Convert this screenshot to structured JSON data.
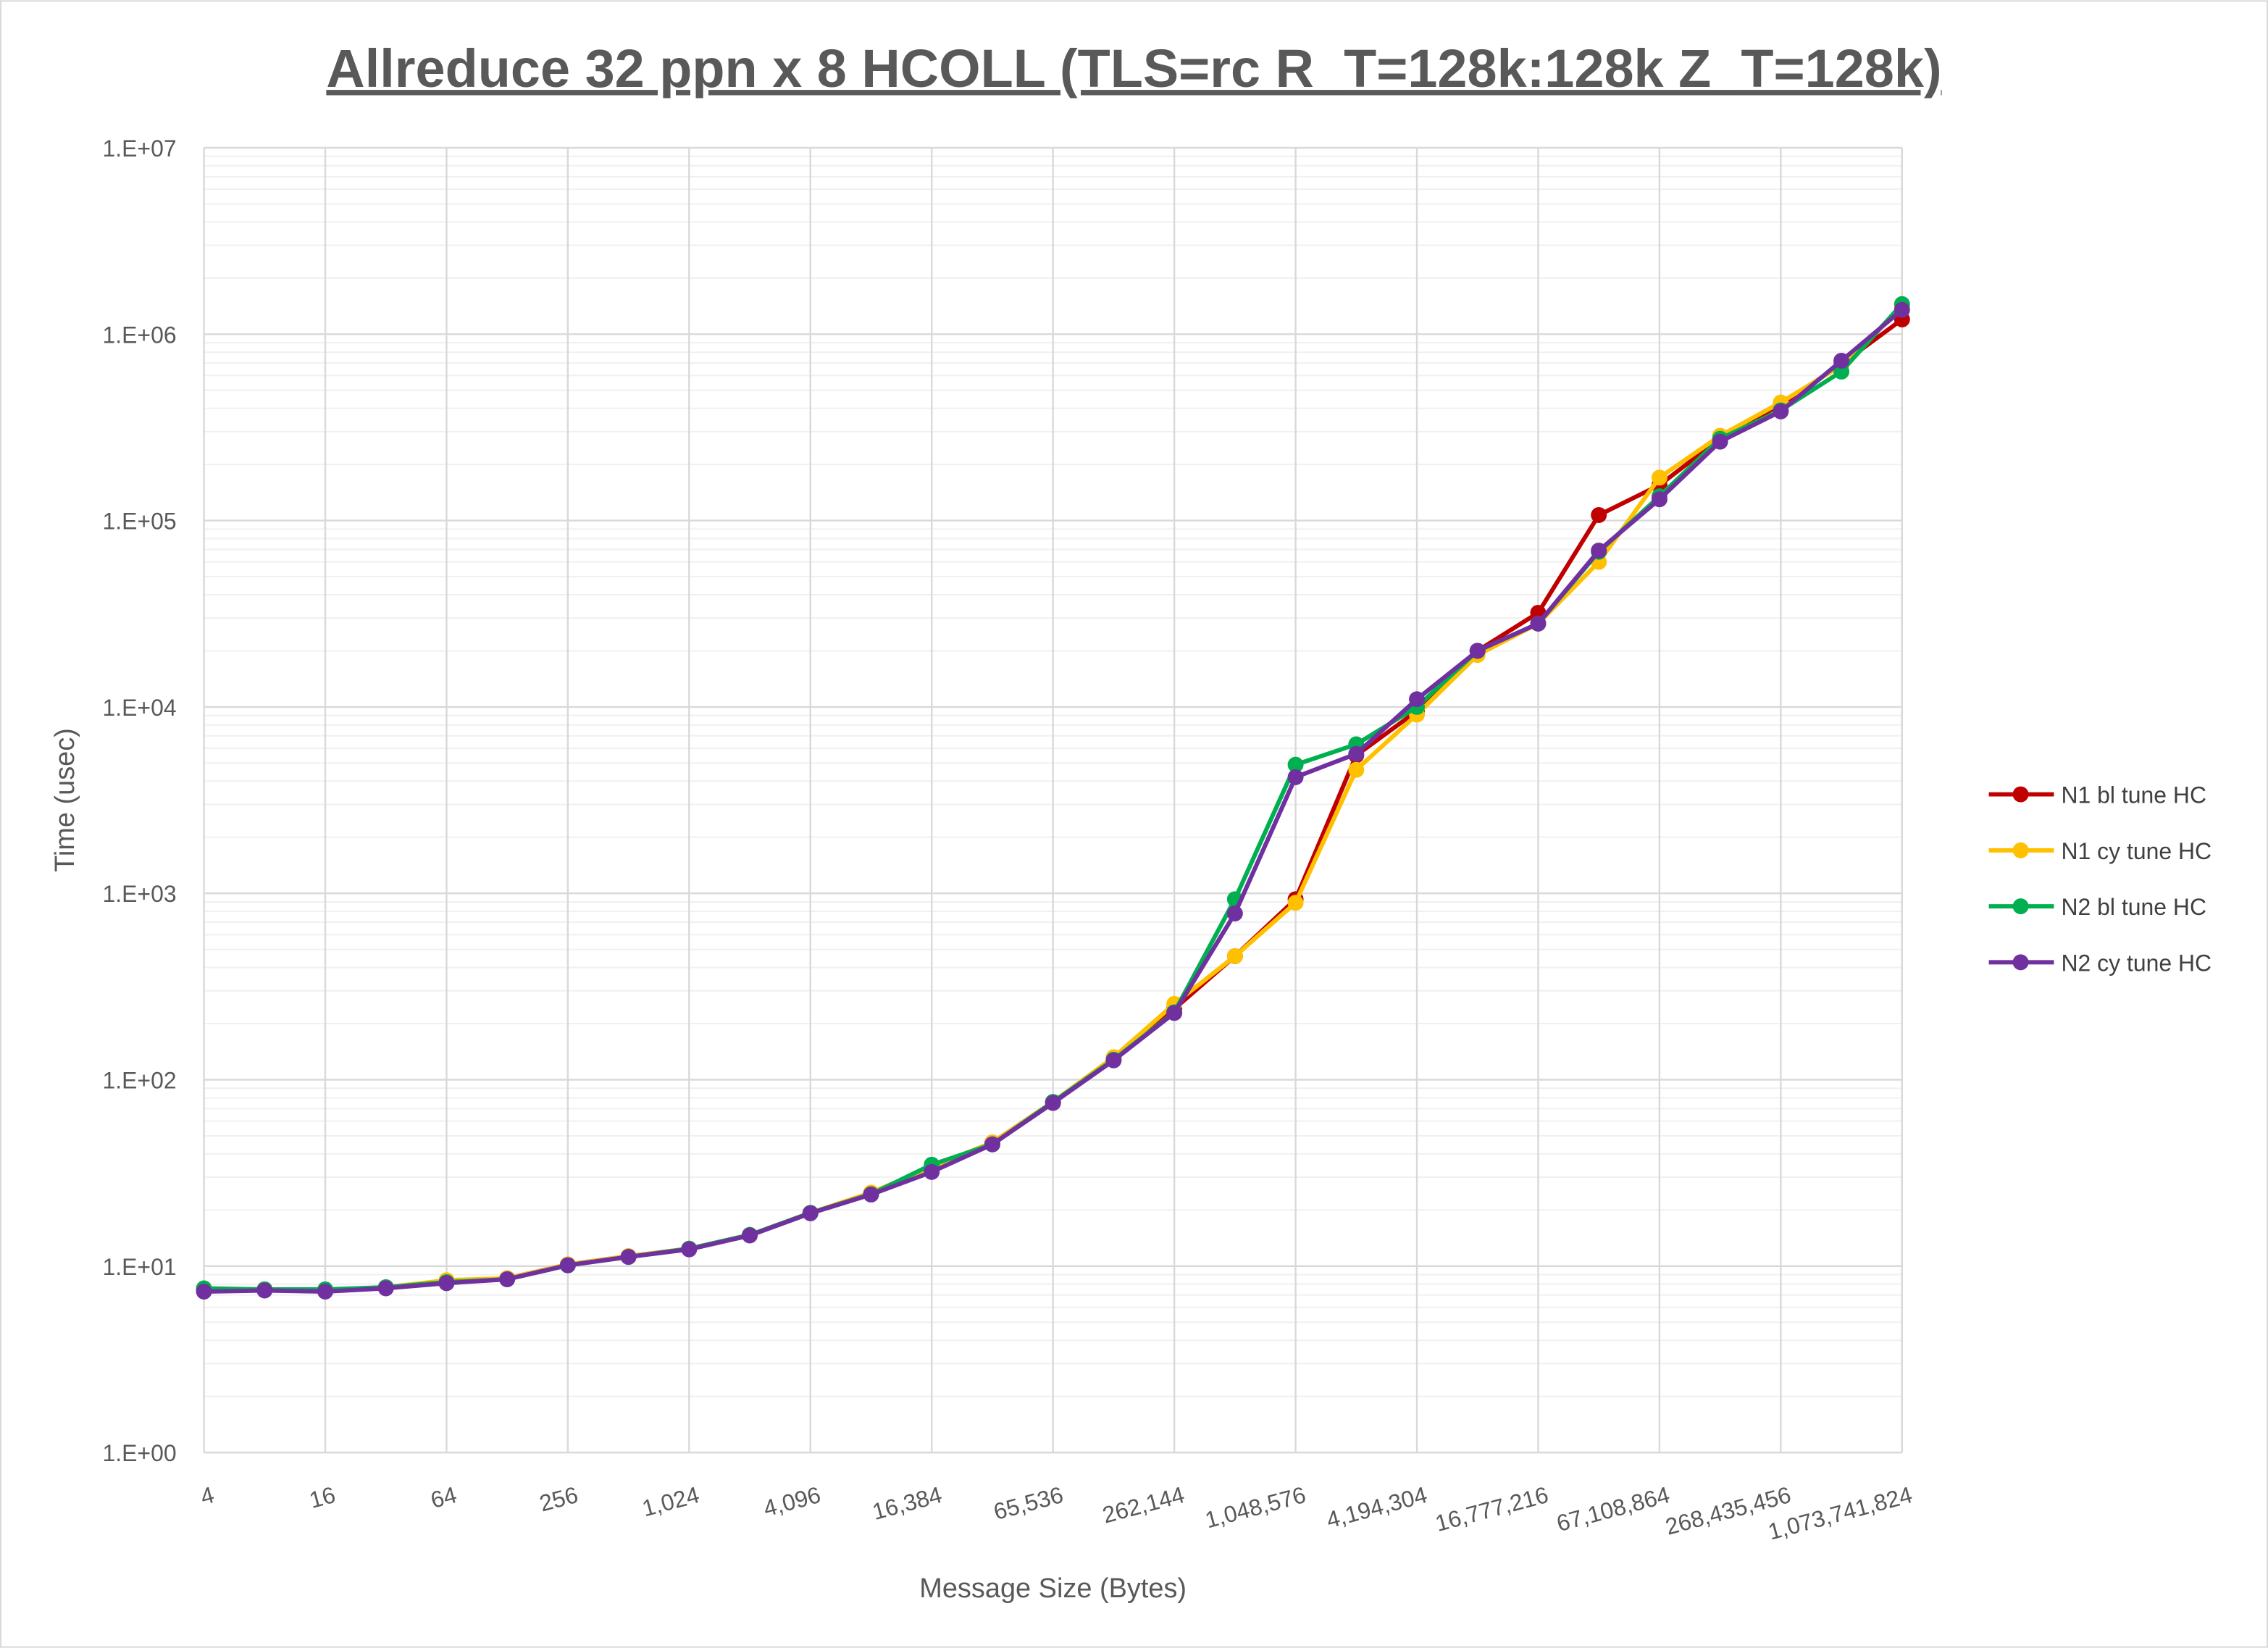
{
  "chart_data": {
    "type": "line",
    "title": "Allreduce 32 ppn x 8 HCOLL (TLS=rc R_T=128k:128k Z_T=128k)",
    "xlabel": "Message Size (Bytes)",
    "ylabel": "Time (usec)",
    "y_scale": "log",
    "ylim": [
      1,
      10000000
    ],
    "y_tick_labels": [
      "1.E+00",
      "1.E+01",
      "1.E+02",
      "1.E+03",
      "1.E+04",
      "1.E+05",
      "1.E+06",
      "1.E+07"
    ],
    "grid": true,
    "legend_position": "right",
    "x": [
      4,
      8,
      16,
      32,
      64,
      128,
      256,
      512,
      1024,
      2048,
      4096,
      8192,
      16384,
      32768,
      65536,
      131072,
      262144,
      524288,
      1048576,
      2097152,
      4194304,
      8388608,
      16777216,
      33554432,
      67108864,
      134217728,
      268435456,
      536870912,
      1073741824
    ],
    "x_tick_labels": [
      "4",
      "16",
      "64",
      "256",
      "1,024",
      "4,096",
      "16,384",
      "65,536",
      "262,144",
      "1,048,576",
      "4,194,304",
      "16,777,216",
      "67,108,864",
      "268,435,456",
      "1,073,741,824"
    ],
    "series": [
      {
        "name": "N1 bl tune HC",
        "color": "#c00000",
        "values": [
          7.5,
          7.5,
          7.4,
          7.7,
          8.3,
          8.6,
          10.2,
          11.3,
          12.4,
          14.7,
          19.3,
          24.5,
          34,
          46,
          76,
          130,
          240,
          460,
          930,
          5500,
          9500,
          20000,
          32000,
          107000,
          155000,
          275000,
          420000,
          690000,
          1200000
        ]
      },
      {
        "name": "N1 cy tune HC",
        "color": "#ffc000",
        "values": [
          7.5,
          7.5,
          7.4,
          7.7,
          8.4,
          8.6,
          10.2,
          11.3,
          12.4,
          14.7,
          19.3,
          24.8,
          34,
          46,
          76,
          132,
          255,
          460,
          890,
          4600,
          9100,
          19000,
          28000,
          60000,
          170000,
          285000,
          430000,
          680000,
          1400000
        ]
      },
      {
        "name": "N2 bl tune HC",
        "color": "#00b050",
        "values": [
          7.6,
          7.5,
          7.5,
          7.7,
          8.2,
          8.5,
          10.1,
          11.2,
          12.4,
          14.7,
          19.3,
          24.3,
          35,
          45,
          76,
          128,
          230,
          930,
          4900,
          6300,
          10000,
          20000,
          28000,
          68000,
          135000,
          275000,
          390000,
          630000,
          1450000
        ]
      },
      {
        "name": "N2 cy tune HC",
        "color": "#7030a0",
        "values": [
          7.3,
          7.4,
          7.3,
          7.6,
          8.1,
          8.5,
          10.1,
          11.2,
          12.3,
          14.6,
          19.2,
          24.2,
          32,
          45,
          75,
          127,
          228,
          780,
          4200,
          5600,
          11000,
          20000,
          28000,
          69000,
          130000,
          265000,
          385000,
          720000,
          1350000
        ]
      }
    ]
  }
}
